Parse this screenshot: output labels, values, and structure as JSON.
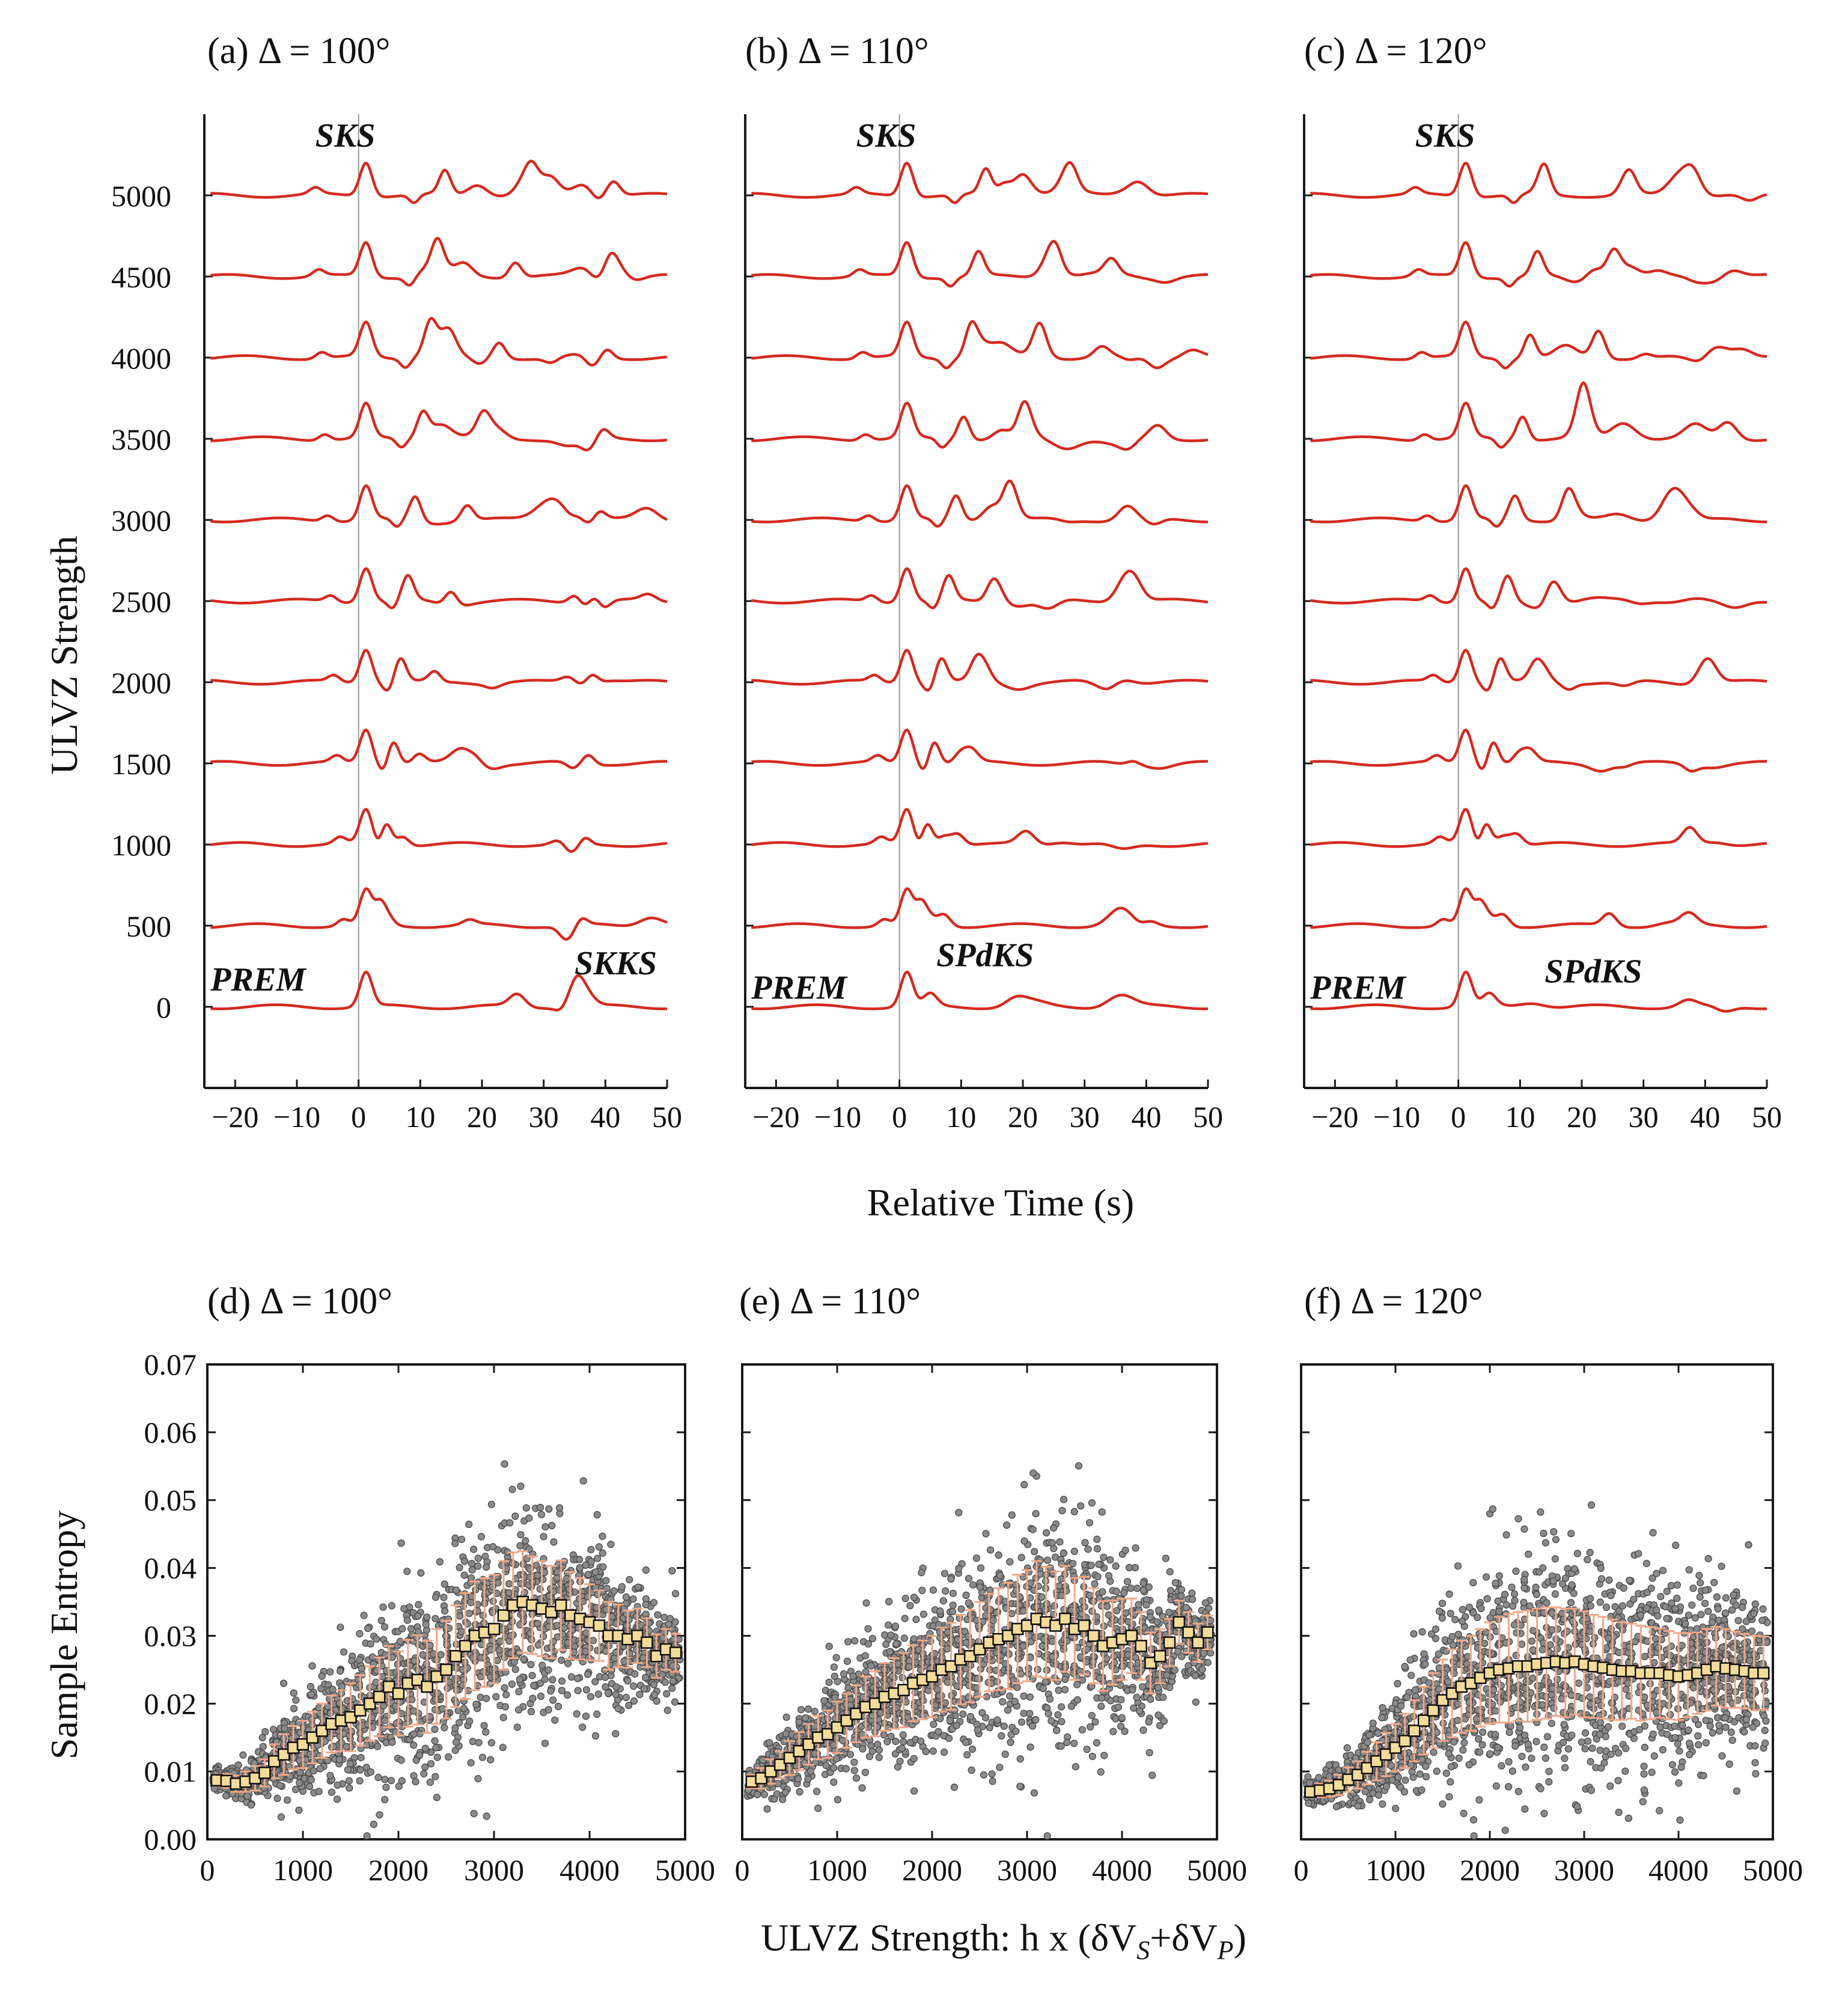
{
  "colors": {
    "trace": "#d42a20",
    "axis": "#1a1a1a",
    "scatter": "#8a8a8a",
    "scatter_edge": "#444444",
    "errorbar": "#f0a888",
    "marker_fill": "#f3dc9a",
    "marker_edge": "#111111",
    "ref_line": "#999999"
  },
  "labels": {
    "top_xlabel": "Relative Time (s)",
    "top_ylabel": "ULVZ Strength",
    "bottom_xlabel_pre": "ULVZ Strength:  h x (δV",
    "bottom_xlabel_sub1": "S",
    "bottom_xlabel_mid": "+δV",
    "bottom_xlabel_sub2": "P",
    "bottom_xlabel_post": ")",
    "bottom_ylabel": "Sample Entropy"
  },
  "chart_data": [
    {
      "id": "a",
      "type": "line",
      "title": "(a) Δ = 100°",
      "xlabel": "Relative Time (s)",
      "ylabel": "ULVZ Strength",
      "xlim": [
        -25,
        50
      ],
      "xticks": [
        -20,
        -10,
        0,
        10,
        20,
        30,
        40,
        50
      ],
      "xtick_labels": [
        "−20",
        "−10",
        "0",
        "10",
        "20",
        "30",
        "40",
        "50"
      ],
      "ylim": [
        -500,
        5500
      ],
      "yticks": [
        0,
        500,
        1000,
        1500,
        2000,
        2500,
        3000,
        3500,
        4000,
        4500,
        5000
      ],
      "ytick_labels": [
        "0",
        "500",
        "1000",
        "1500",
        "2000",
        "2500",
        "3000",
        "3500",
        "4000",
        "4500",
        "5000"
      ],
      "series_offsets": [
        0,
        500,
        1000,
        1500,
        2000,
        2500,
        3000,
        3500,
        4000,
        4500,
        5000
      ],
      "annotations": [
        {
          "text": "SKS",
          "x": -7,
          "y": 5300
        },
        {
          "text": "PREM",
          "x": -24,
          "y": 100
        },
        {
          "text": "SKKS",
          "x": 35,
          "y": 200
        }
      ]
    },
    {
      "id": "b",
      "type": "line",
      "title": "(b) Δ = 110°",
      "xlabel": "Relative Time (s)",
      "xlim": [
        -25,
        50
      ],
      "xticks": [
        -20,
        -10,
        0,
        10,
        20,
        30,
        40,
        50
      ],
      "xtick_labels": [
        "−20",
        "−10",
        "0",
        "10",
        "20",
        "30",
        "40",
        "50"
      ],
      "ylim": [
        -500,
        5500
      ],
      "series_offsets": [
        0,
        500,
        1000,
        1500,
        2000,
        2500,
        3000,
        3500,
        4000,
        4500,
        5000
      ],
      "annotations": [
        {
          "text": "SKS",
          "x": -7,
          "y": 5300
        },
        {
          "text": "PREM",
          "x": -24,
          "y": 50
        },
        {
          "text": "SPdKS",
          "x": 6,
          "y": 250
        }
      ]
    },
    {
      "id": "c",
      "type": "line",
      "title": "(c) Δ = 120°",
      "xlabel": "Relative Time (s)",
      "xlim": [
        -25,
        50
      ],
      "xticks": [
        -20,
        -10,
        0,
        10,
        20,
        30,
        40,
        50
      ],
      "xtick_labels": [
        "−20",
        "−10",
        "0",
        "10",
        "20",
        "30",
        "40",
        "50"
      ],
      "ylim": [
        -500,
        5500
      ],
      "series_offsets": [
        0,
        500,
        1000,
        1500,
        2000,
        2500,
        3000,
        3500,
        4000,
        4500,
        5000
      ],
      "annotations": [
        {
          "text": "SKS",
          "x": -7,
          "y": 5300
        },
        {
          "text": "PREM",
          "x": -24,
          "y": 50
        },
        {
          "text": "SPdKS",
          "x": 14,
          "y": 150
        }
      ]
    },
    {
      "id": "d",
      "type": "scatter",
      "title": "(d) Δ = 100°",
      "xlabel": "ULVZ Strength:  h x (δVS+δVP)",
      "ylabel": "Sample Entropy",
      "xlim": [
        0,
        5000
      ],
      "xticks": [
        0,
        1000,
        2000,
        3000,
        4000,
        5000
      ],
      "xtick_labels": [
        "0",
        "1000",
        "2000",
        "3000",
        "4000",
        "5000"
      ],
      "ylim": [
        0,
        0.07
      ],
      "yticks": [
        0,
        0.01,
        0.02,
        0.03,
        0.04,
        0.05,
        0.06,
        0.07
      ],
      "ytick_labels": [
        "0.00",
        "0.01",
        "0.02",
        "0.03",
        "0.04",
        "0.05",
        "0.06",
        "0.07"
      ],
      "mean_x": [
        100,
        200,
        300,
        400,
        500,
        600,
        700,
        800,
        900,
        1000,
        1100,
        1200,
        1300,
        1400,
        1500,
        1600,
        1700,
        1800,
        1900,
        2000,
        2100,
        2200,
        2300,
        2400,
        2500,
        2600,
        2700,
        2800,
        2900,
        3000,
        3100,
        3200,
        3300,
        3400,
        3500,
        3600,
        3700,
        3800,
        3900,
        4000,
        4100,
        4200,
        4300,
        4400,
        4500,
        4600,
        4700,
        4800,
        4900
      ],
      "mean_y": [
        0.0087,
        0.0086,
        0.0082,
        0.0085,
        0.009,
        0.0098,
        0.0115,
        0.0125,
        0.0135,
        0.014,
        0.015,
        0.016,
        0.017,
        0.0175,
        0.018,
        0.019,
        0.02,
        0.021,
        0.0225,
        0.0215,
        0.023,
        0.0235,
        0.0225,
        0.024,
        0.025,
        0.027,
        0.0285,
        0.03,
        0.0305,
        0.031,
        0.033,
        0.0345,
        0.035,
        0.0345,
        0.034,
        0.0335,
        0.0345,
        0.033,
        0.0325,
        0.032,
        0.0315,
        0.03,
        0.03,
        0.0295,
        0.03,
        0.029,
        0.027,
        0.028,
        0.0275
      ],
      "std": [
        0.0008,
        0.001,
        0.0012,
        0.0015,
        0.0018,
        0.002,
        0.0025,
        0.003,
        0.0032,
        0.0035,
        0.0038,
        0.004,
        0.0042,
        0.0045,
        0.005,
        0.0052,
        0.0055,
        0.0058,
        0.006,
        0.0062,
        0.0064,
        0.0066,
        0.0068,
        0.007,
        0.0072,
        0.0075,
        0.0078,
        0.008,
        0.008,
        0.008,
        0.008,
        0.0078,
        0.0075,
        0.0072,
        0.007,
        0.0068,
        0.0066,
        0.0064,
        0.006,
        0.0056,
        0.0052,
        0.005,
        0.0046,
        0.0042,
        0.004,
        0.0036,
        0.0032,
        0.003,
        0.0028
      ]
    },
    {
      "id": "e",
      "type": "scatter",
      "title": "(e) Δ = 110°",
      "xlabel": "ULVZ Strength:  h x (δVS+δVP)",
      "xlim": [
        0,
        5000
      ],
      "xticks": [
        0,
        1000,
        2000,
        3000,
        4000,
        5000
      ],
      "xtick_labels": [
        "0",
        "1000",
        "2000",
        "3000",
        "4000",
        "5000"
      ],
      "ylim": [
        0,
        0.07
      ],
      "yticks": [
        0,
        0.01,
        0.02,
        0.03,
        0.04,
        0.05,
        0.06,
        0.07
      ],
      "mean_x": [
        100,
        200,
        300,
        400,
        500,
        600,
        700,
        800,
        900,
        1000,
        1100,
        1200,
        1300,
        1400,
        1500,
        1600,
        1700,
        1800,
        1900,
        2000,
        2100,
        2200,
        2300,
        2400,
        2500,
        2600,
        2700,
        2800,
        2900,
        3000,
        3100,
        3200,
        3300,
        3400,
        3500,
        3600,
        3700,
        3800,
        3900,
        4000,
        4100,
        4200,
        4300,
        4400,
        4500,
        4600,
        4700,
        4800,
        4900
      ],
      "mean_y": [
        0.0085,
        0.009,
        0.01,
        0.011,
        0.012,
        0.013,
        0.014,
        0.015,
        0.0155,
        0.0165,
        0.0175,
        0.0185,
        0.0195,
        0.02,
        0.021,
        0.0215,
        0.022,
        0.023,
        0.0235,
        0.024,
        0.025,
        0.0255,
        0.0265,
        0.027,
        0.028,
        0.029,
        0.0295,
        0.03,
        0.031,
        0.0315,
        0.0325,
        0.032,
        0.0315,
        0.0325,
        0.031,
        0.0315,
        0.03,
        0.0285,
        0.029,
        0.0295,
        0.03,
        0.0285,
        0.026,
        0.027,
        0.029,
        0.032,
        0.0305,
        0.029,
        0.0305
      ],
      "std": [
        0.001,
        0.0015,
        0.0018,
        0.002,
        0.0025,
        0.0028,
        0.003,
        0.0032,
        0.0035,
        0.0038,
        0.004,
        0.0042,
        0.0045,
        0.0048,
        0.005,
        0.0052,
        0.0055,
        0.0056,
        0.0058,
        0.006,
        0.0062,
        0.0064,
        0.0066,
        0.0068,
        0.007,
        0.0072,
        0.0075,
        0.0078,
        0.008,
        0.0082,
        0.0085,
        0.0082,
        0.008,
        0.0078,
        0.0075,
        0.0072,
        0.007,
        0.0066,
        0.0062,
        0.006,
        0.0055,
        0.005,
        0.0045,
        0.004,
        0.0035,
        0.0032,
        0.003,
        0.0028,
        0.0025
      ]
    },
    {
      "id": "f",
      "type": "scatter",
      "title": "(f) Δ = 120°",
      "xlabel": "ULVZ Strength:  h x (δVS+δVP)",
      "xlim": [
        0,
        5000
      ],
      "xticks": [
        0,
        1000,
        2000,
        3000,
        4000,
        5000
      ],
      "xtick_labels": [
        "0",
        "1000",
        "2000",
        "3000",
        "4000",
        "5000"
      ],
      "ylim": [
        0,
        0.07
      ],
      "yticks": [
        0,
        0.01,
        0.02,
        0.03,
        0.04,
        0.05,
        0.06,
        0.07
      ],
      "mean_x": [
        100,
        200,
        300,
        400,
        500,
        600,
        700,
        800,
        900,
        1000,
        1100,
        1200,
        1300,
        1400,
        1500,
        1600,
        1700,
        1800,
        1900,
        2000,
        2100,
        2200,
        2300,
        2400,
        2500,
        2600,
        2700,
        2800,
        2900,
        3000,
        3100,
        3200,
        3300,
        3400,
        3500,
        3600,
        3700,
        3800,
        3900,
        4000,
        4100,
        4200,
        4300,
        4400,
        4500,
        4600,
        4700,
        4800,
        4900
      ],
      "mean_y": [
        0.007,
        0.0072,
        0.0075,
        0.008,
        0.0088,
        0.0095,
        0.0105,
        0.0115,
        0.0125,
        0.0135,
        0.0145,
        0.016,
        0.0175,
        0.019,
        0.0205,
        0.0215,
        0.0225,
        0.023,
        0.0238,
        0.0245,
        0.025,
        0.0252,
        0.0255,
        0.0255,
        0.0258,
        0.026,
        0.0262,
        0.026,
        0.0262,
        0.0258,
        0.0255,
        0.0253,
        0.025,
        0.0248,
        0.0248,
        0.0245,
        0.0245,
        0.0245,
        0.0242,
        0.024,
        0.0242,
        0.0245,
        0.025,
        0.0255,
        0.0252,
        0.025,
        0.0248,
        0.0245,
        0.0245
      ],
      "std": [
        0.0008,
        0.001,
        0.0012,
        0.0015,
        0.0018,
        0.002,
        0.0024,
        0.0028,
        0.0032,
        0.0035,
        0.004,
        0.0045,
        0.005,
        0.0055,
        0.006,
        0.0065,
        0.0068,
        0.007,
        0.0072,
        0.0075,
        0.0078,
        0.008,
        0.008,
        0.0082,
        0.0082,
        0.0082,
        0.008,
        0.008,
        0.0078,
        0.0078,
        0.0076,
        0.0075,
        0.0074,
        0.0072,
        0.007,
        0.007,
        0.0068,
        0.0066,
        0.0065,
        0.0064,
        0.0062,
        0.006,
        0.006,
        0.0058,
        0.0058,
        0.0056,
        0.0055,
        0.0055,
        0.0054
      ]
    }
  ]
}
